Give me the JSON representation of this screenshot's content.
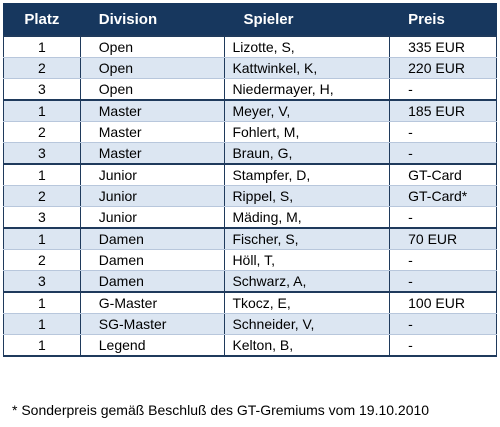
{
  "table": {
    "header": [
      "Platz",
      "Division",
      "Spieler",
      "Preis"
    ],
    "groups": [
      {
        "rows": [
          [
            "1",
            "Open",
            "Lizotte, S,",
            "335 EUR"
          ],
          [
            "2",
            "Open",
            "Kattwinkel, K,",
            "220 EUR"
          ],
          [
            "3",
            "Open",
            "Niedermayer, H,",
            "-"
          ]
        ]
      },
      {
        "rows": [
          [
            "1",
            "Master",
            "Meyer, V,",
            "185 EUR"
          ],
          [
            "2",
            "Master",
            "Fohlert, M,",
            "-"
          ],
          [
            "3",
            "Master",
            "Braun, G,",
            "-"
          ]
        ]
      },
      {
        "rows": [
          [
            "1",
            "Junior",
            "Stampfer, D,",
            "GT-Card"
          ],
          [
            "2",
            "Junior",
            "Rippel, S,",
            "GT-Card*"
          ],
          [
            "3",
            "Junior",
            "Mäding, M,",
            "-"
          ]
        ]
      },
      {
        "rows": [
          [
            "1",
            "Damen",
            "Fischer, S,",
            "70 EUR"
          ],
          [
            "2",
            "Damen",
            "Höll, T,",
            "-"
          ],
          [
            "3",
            "Damen",
            "Schwarz, A,",
            "-"
          ]
        ]
      },
      {
        "rows": [
          [
            "1",
            "G-Master",
            "Tkocz, E,",
            "100 EUR"
          ],
          [
            "1",
            "SG-Master",
            "Schneider, V,",
            "-"
          ],
          [
            "1",
            "Legend",
            "Kelton, B,",
            "-"
          ]
        ]
      }
    ],
    "footnote": "* Sonderpreis gemäß Beschluß des GT-Gremiums vom 19.10.2010"
  }
}
